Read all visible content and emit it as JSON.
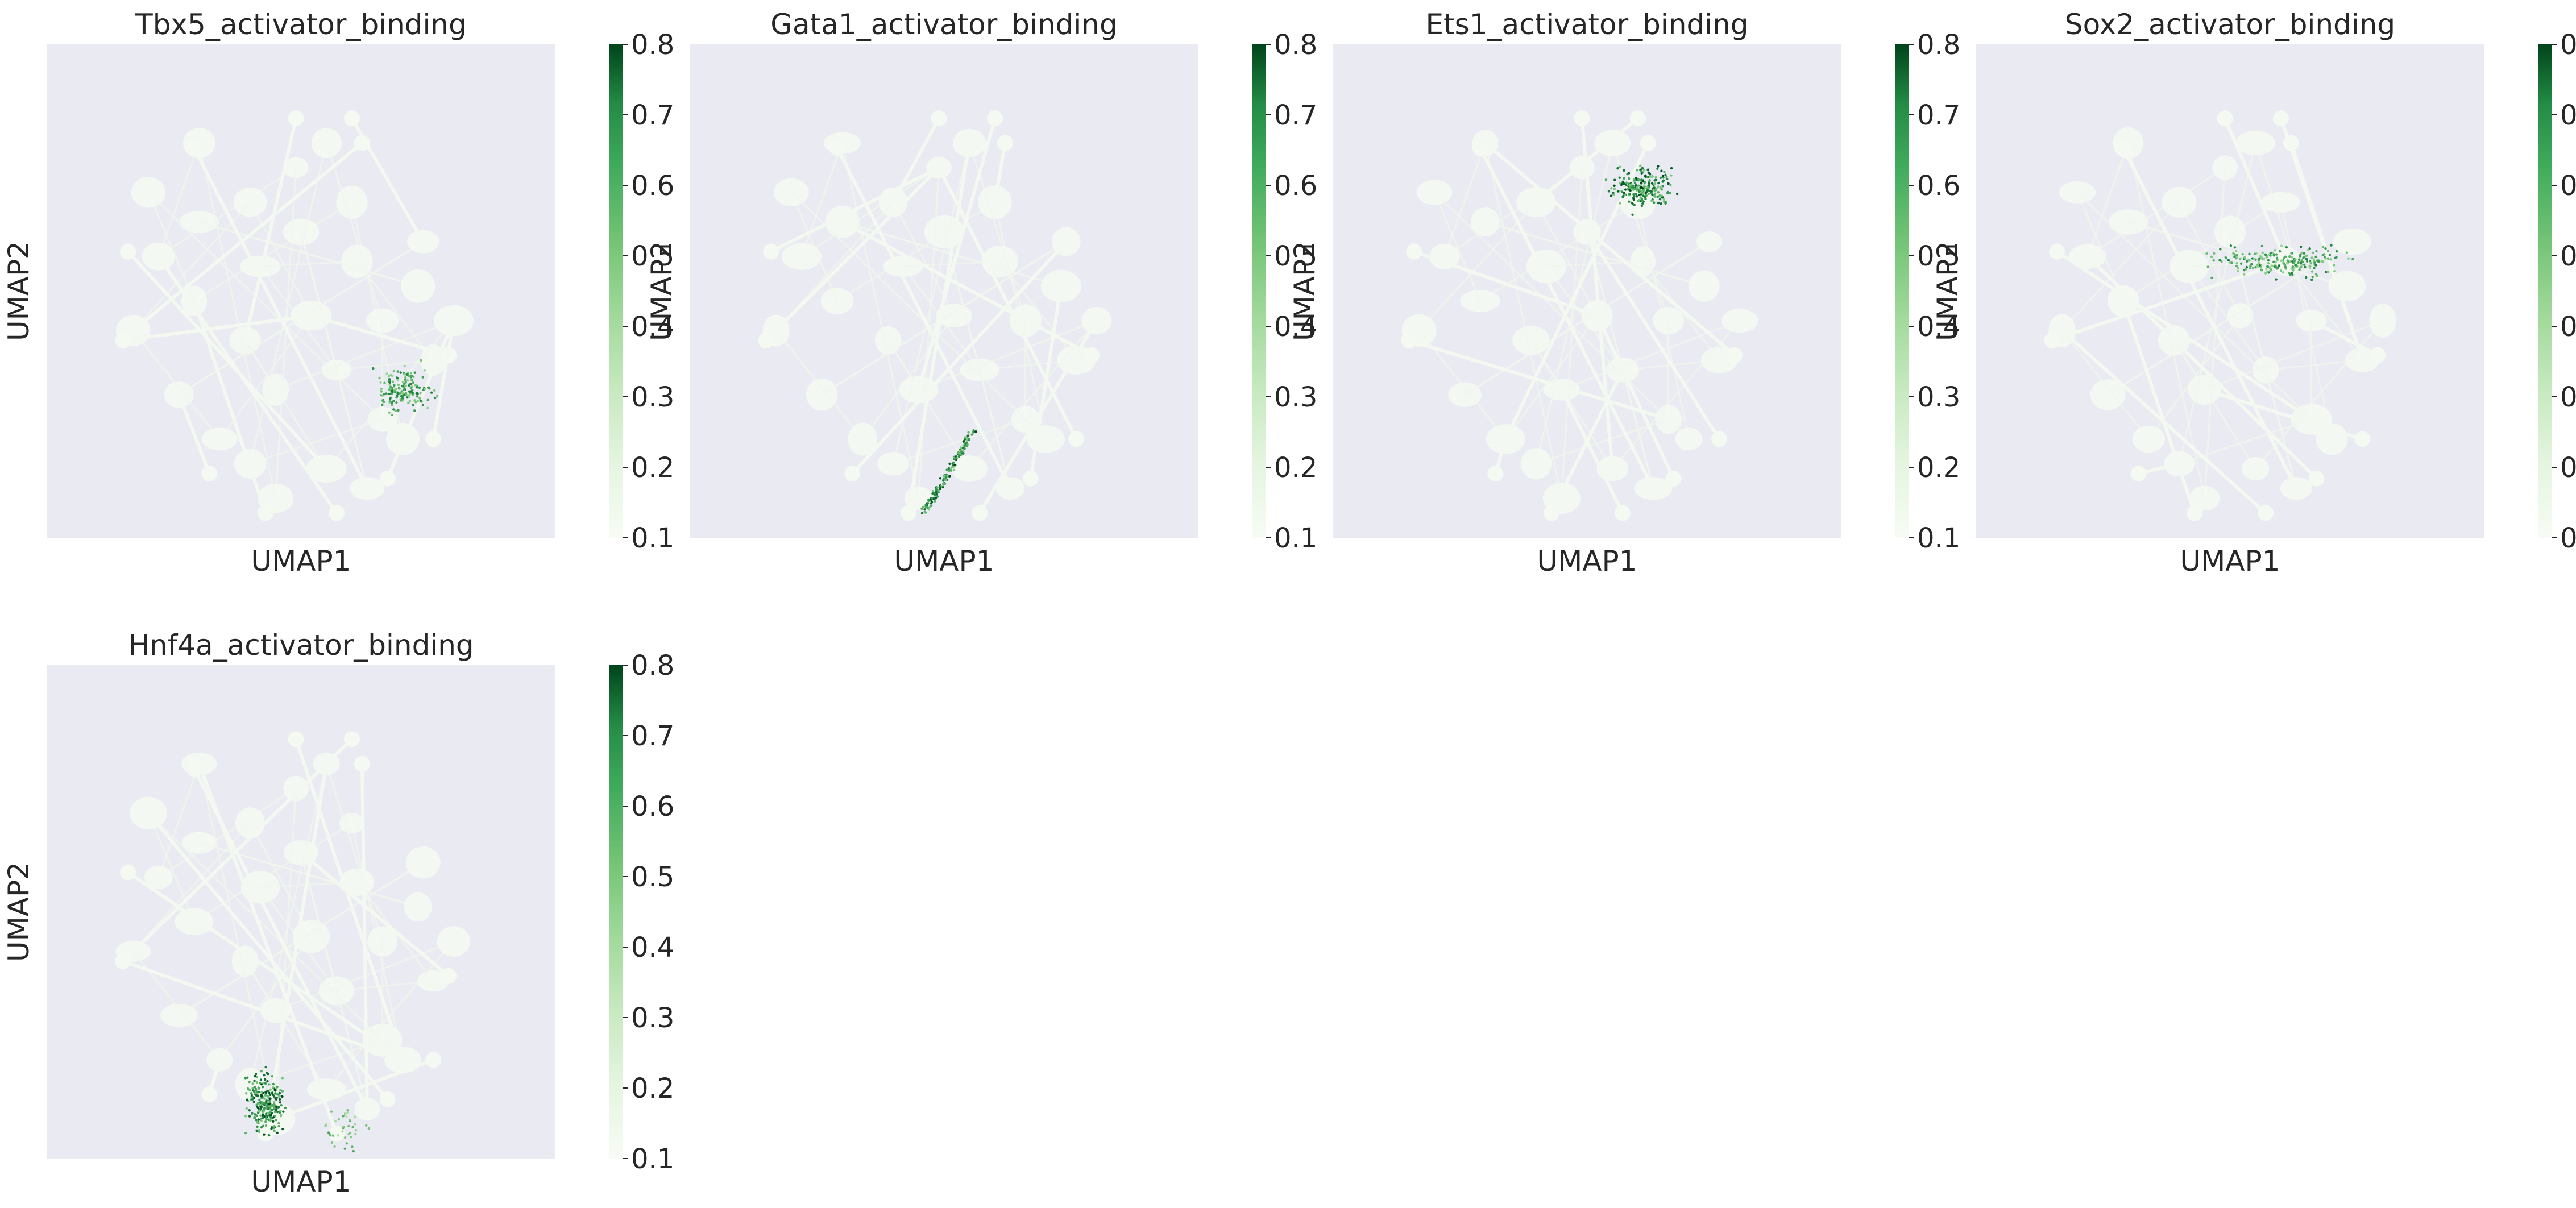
{
  "figure": {
    "colorbar": {
      "ticks": [
        "0.1",
        "0.2",
        "0.3",
        "0.4",
        "0.5",
        "0.6",
        "0.7",
        "0.8"
      ],
      "colormap": "Greens",
      "range": [
        0.1,
        0.8
      ]
    },
    "background_color": "#eaeaf2"
  },
  "chart_data": [
    {
      "type": "scatter",
      "title": "Tbx5_activator_binding",
      "xlabel": "UMAP1",
      "ylabel": "UMAP2",
      "color_range": [
        0.1,
        0.8
      ],
      "grid": false,
      "highlight_clusters": [
        {
          "region": "right-center",
          "value": 0.7
        }
      ]
    },
    {
      "type": "scatter",
      "title": "Gata1_activator_binding",
      "xlabel": "UMAP1",
      "ylabel": "UMAP2",
      "color_range": [
        0.1,
        0.8
      ],
      "grid": false,
      "highlight_clusters": [
        {
          "region": "bottom-center",
          "value": 0.8
        }
      ]
    },
    {
      "type": "scatter",
      "title": "Ets1_activator_binding",
      "xlabel": "UMAP1",
      "ylabel": "UMAP2",
      "color_range": [
        0.1,
        0.8
      ],
      "grid": false,
      "highlight_clusters": [
        {
          "region": "top-center",
          "value": 0.8
        }
      ]
    },
    {
      "type": "scatter",
      "title": "Sox2_activator_binding",
      "xlabel": "UMAP1",
      "ylabel": "UMAP2",
      "color_range": [
        0.1,
        0.8
      ],
      "grid": false,
      "highlight_clusters": [
        {
          "region": "upper-center",
          "value": 0.7
        }
      ]
    },
    {
      "type": "scatter",
      "title": "Hnf4a_activator_binding",
      "xlabel": "UMAP1",
      "ylabel": "UMAP2",
      "color_range": [
        0.1,
        0.8
      ],
      "grid": false,
      "highlight_clusters": [
        {
          "region": "bottom-left",
          "value": 0.8
        },
        {
          "region": "bottom-center",
          "value": 0.6
        }
      ]
    }
  ]
}
